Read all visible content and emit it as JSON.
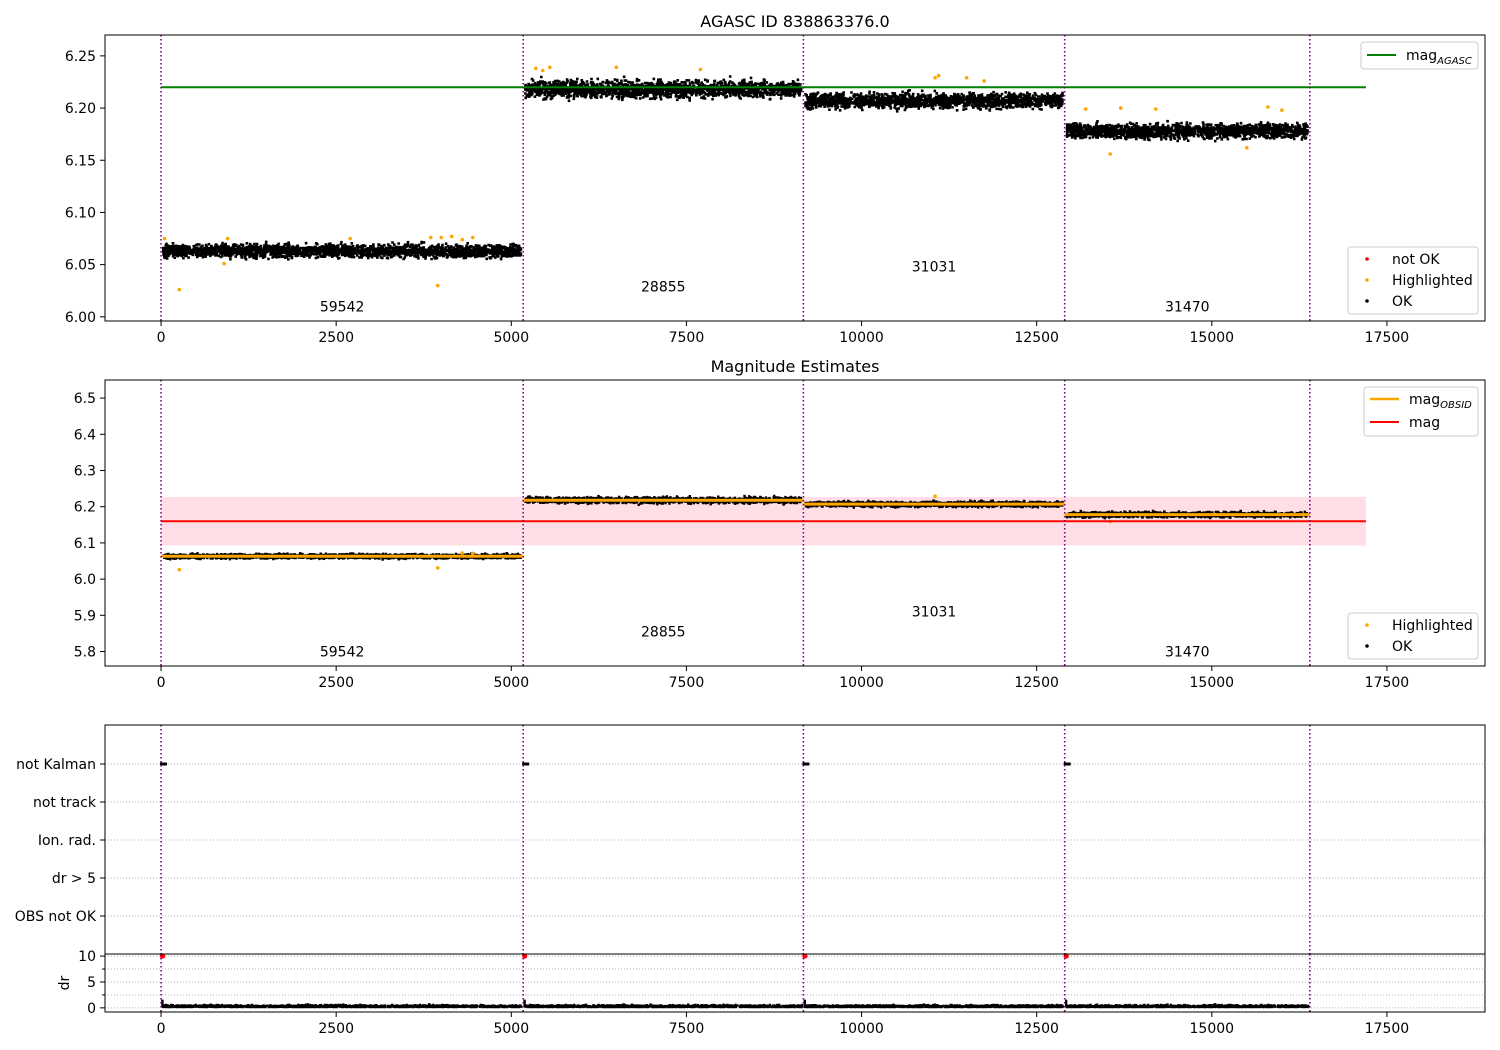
{
  "colors": {
    "ok": "#000000",
    "highlighted": "#ffa500",
    "not_ok": "#ff0000",
    "agasc_line": "#008000",
    "obsid_line": "#ffa500",
    "mean_line": "#ff0000",
    "band": "#ffc0cb",
    "boundary": "#800080",
    "grid": "#b0b0b0"
  },
  "x_axis": {
    "ticks": [
      0,
      2500,
      5000,
      7500,
      10000,
      12500,
      15000,
      17500
    ],
    "xlim": [
      -800,
      18900
    ]
  },
  "observations": [
    {
      "obsid": "59542",
      "start": 0,
      "end": 5170,
      "mag": 6.063,
      "spread": 0.006
    },
    {
      "obsid": "28855",
      "start": 5170,
      "end": 9170,
      "mag": 6.218,
      "spread": 0.008
    },
    {
      "obsid": "31031",
      "start": 9170,
      "end": 12900,
      "mag": 6.207,
      "spread": 0.007
    },
    {
      "obsid": "31470",
      "start": 12900,
      "end": 16400,
      "mag": 6.178,
      "spread": 0.007
    }
  ],
  "boundaries": [
    0,
    5170,
    9170,
    12900,
    16400
  ],
  "chart_data": [
    {
      "type": "scatter",
      "title": "AGASC ID 838863376.0",
      "ylim": [
        5.996,
        6.27
      ],
      "yticks": [
        "6.00",
        "6.05",
        "6.10",
        "6.15",
        "6.20",
        "6.25"
      ],
      "obsid_label_y": [
        6.01,
        6.029,
        6.048,
        6.01
      ],
      "mag_agasc": 6.22,
      "line_x_end": 17200,
      "legend_line": {
        "label": "mag",
        "sub": "AGASC"
      },
      "legend_points": [
        "not OK",
        "Highlighted",
        "OK"
      ],
      "highlighted_points": [
        [
          50,
          6.075
        ],
        [
          260,
          6.026
        ],
        [
          900,
          6.051
        ],
        [
          950,
          6.075
        ],
        [
          2700,
          6.075
        ],
        [
          3850,
          6.076
        ],
        [
          3950,
          6.03
        ],
        [
          4000,
          6.076
        ],
        [
          4150,
          6.077
        ],
        [
          4300,
          6.074
        ],
        [
          4450,
          6.076
        ],
        [
          5350,
          6.238
        ],
        [
          5450,
          6.236
        ],
        [
          5550,
          6.239
        ],
        [
          6500,
          6.239
        ],
        [
          7700,
          6.237
        ],
        [
          11050,
          6.229
        ],
        [
          11100,
          6.231
        ],
        [
          11500,
          6.229
        ],
        [
          11750,
          6.226
        ],
        [
          13200,
          6.199
        ],
        [
          13550,
          6.156
        ],
        [
          13700,
          6.2
        ],
        [
          14200,
          6.199
        ],
        [
          15500,
          6.162
        ],
        [
          15800,
          6.201
        ],
        [
          16000,
          6.198
        ]
      ]
    },
    {
      "type": "scatter",
      "title": "Magnitude Estimates",
      "ylim": [
        5.76,
        6.55
      ],
      "yticks": [
        "5.8",
        "5.9",
        "6.0",
        "6.1",
        "6.2",
        "6.3",
        "6.4",
        "6.5"
      ],
      "obsid_label_y": [
        5.8,
        5.855,
        5.91,
        5.8
      ],
      "mag_mean": 6.16,
      "band": [
        6.093,
        6.227
      ],
      "line_x_end": 17200,
      "legend_lines": [
        {
          "label": "mag",
          "sub": "OBSID"
        },
        {
          "label": "mag",
          "sub": ""
        }
      ],
      "legend_points": [
        "Highlighted",
        "OK"
      ],
      "highlighted_points": [
        [
          260,
          6.026
        ],
        [
          3950,
          6.031
        ],
        [
          4300,
          6.072
        ],
        [
          4450,
          6.071
        ],
        [
          11050,
          6.229
        ],
        [
          13550,
          6.159
        ]
      ]
    },
    {
      "type": "scatter",
      "categories": [
        "not Kalman",
        "not track",
        "Ion. rad.",
        "dr > 5",
        "OBS not OK"
      ],
      "flag_points": [
        {
          "category": "not Kalman",
          "x": [
            0,
            5170,
            9170,
            12900
          ]
        }
      ]
    },
    {
      "type": "scatter",
      "ylabel": "dr",
      "yticks": [
        "0",
        "5",
        "10"
      ],
      "ylim": [
        -0.8,
        10.4
      ],
      "not_ok_points": [
        [
          0,
          10
        ],
        [
          5170,
          10
        ],
        [
          9170,
          10
        ],
        [
          12900,
          10
        ]
      ]
    }
  ]
}
